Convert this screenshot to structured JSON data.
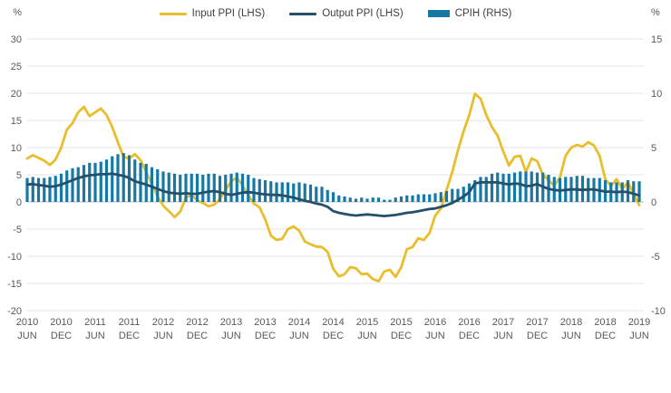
{
  "chart_data": {
    "type": "mixed",
    "title": "",
    "frequency": "monthly",
    "x_start": "2010 JUN",
    "x_end": "2019 JUN",
    "x_tick_labels": [
      {
        "year": "2010",
        "month": "JUN"
      },
      {
        "year": "2010",
        "month": "DEC"
      },
      {
        "year": "2011",
        "month": "JUN"
      },
      {
        "year": "2011",
        "month": "DEC"
      },
      {
        "year": "2012",
        "month": "JUN"
      },
      {
        "year": "2012",
        "month": "DEC"
      },
      {
        "year": "2013",
        "month": "JUN"
      },
      {
        "year": "2013",
        "month": "DEC"
      },
      {
        "year": "2014",
        "month": "JUN"
      },
      {
        "year": "2014",
        "month": "DEC"
      },
      {
        "year": "2015",
        "month": "JUN"
      },
      {
        "year": "2015",
        "month": "DEC"
      },
      {
        "year": "2016",
        "month": "JUN"
      },
      {
        "year": "2016",
        "month": "DEC"
      },
      {
        "year": "2017",
        "month": "JUN"
      },
      {
        "year": "2017",
        "month": "DEC"
      },
      {
        "year": "2018",
        "month": "JUN"
      },
      {
        "year": "2018",
        "month": "DEC"
      },
      {
        "year": "2019",
        "month": "JUN"
      }
    ],
    "left_axis": {
      "unit": "%",
      "ticks": [
        30,
        25,
        20,
        15,
        10,
        5,
        0,
        -5,
        -10,
        -15,
        -20
      ],
      "ylim": [
        -20,
        30
      ]
    },
    "right_axis": {
      "unit": "%",
      "ticks": [
        15,
        10,
        5,
        0,
        -5,
        -10
      ],
      "ylim": [
        -10,
        15
      ]
    },
    "grid": {
      "show": true,
      "color": "#e3e3e3",
      "zero_line_color": "#bfbfbf"
    },
    "legend_position": "top-center",
    "series": [
      {
        "name": "Input PPI (LHS)",
        "type": "line",
        "axis": "left",
        "color": "#e9bd2b",
        "values": [
          8.0,
          8.6,
          8.1,
          7.6,
          6.8,
          7.8,
          10.0,
          13.3,
          14.5,
          16.5,
          17.5,
          15.8,
          16.5,
          17.2,
          16.0,
          13.8,
          11.0,
          8.3,
          8.0,
          8.8,
          7.7,
          5.5,
          3.3,
          1.0,
          -0.7,
          -1.7,
          -2.8,
          -1.8,
          0.8,
          1.3,
          0.3,
          -0.2,
          -0.8,
          -0.5,
          0.5,
          2.2,
          3.8,
          4.5,
          3.0,
          1.2,
          -0.3,
          -1.0,
          -3.2,
          -6.2,
          -7.0,
          -6.8,
          -5.0,
          -4.5,
          -5.3,
          -7.3,
          -7.8,
          -8.2,
          -8.3,
          -9.2,
          -12.3,
          -13.7,
          -13.3,
          -12.0,
          -12.2,
          -13.3,
          -13.2,
          -14.2,
          -14.6,
          -12.8,
          -12.5,
          -13.8,
          -12.0,
          -8.7,
          -8.3,
          -6.7,
          -7.0,
          -5.7,
          -2.5,
          -1.2,
          2.2,
          5.5,
          9.5,
          13.0,
          16.0,
          19.9,
          19.0,
          16.0,
          13.8,
          12.2,
          9.3,
          6.7,
          8.3,
          8.5,
          5.5,
          8.0,
          7.5,
          5.0,
          4.0,
          3.0,
          4.5,
          8.5,
          10.0,
          10.5,
          10.2,
          11.0,
          10.4,
          8.5,
          4.2,
          2.9,
          4.2,
          2.4,
          3.6,
          1.5,
          -0.6
        ]
      },
      {
        "name": "Output PPI (LHS)",
        "type": "line",
        "axis": "left",
        "color": "#24506b",
        "values": [
          3.2,
          3.3,
          3.1,
          3.0,
          2.8,
          2.9,
          3.2,
          3.6,
          4.0,
          4.4,
          4.7,
          4.9,
          5.0,
          5.1,
          5.1,
          5.2,
          5.0,
          4.8,
          4.4,
          3.8,
          3.5,
          3.2,
          2.8,
          2.4,
          2.0,
          1.7,
          1.6,
          1.5,
          1.6,
          1.5,
          1.5,
          1.7,
          1.9,
          2.0,
          1.8,
          1.5,
          1.3,
          1.5,
          1.7,
          1.8,
          1.7,
          1.5,
          1.4,
          1.3,
          1.3,
          1.2,
          1.0,
          0.8,
          0.5,
          0.2,
          0.0,
          -0.3,
          -0.5,
          -0.9,
          -1.7,
          -2.0,
          -2.2,
          -2.4,
          -2.5,
          -2.4,
          -2.3,
          -2.4,
          -2.5,
          -2.6,
          -2.5,
          -2.4,
          -2.2,
          -2.0,
          -1.9,
          -1.7,
          -1.5,
          -1.3,
          -1.2,
          -0.9,
          -0.6,
          -0.2,
          0.4,
          1.0,
          1.8,
          3.4,
          3.6,
          3.6,
          3.6,
          3.6,
          3.4,
          3.2,
          3.4,
          3.3,
          2.9,
          3.0,
          3.3,
          2.8,
          2.4,
          2.2,
          2.1,
          2.2,
          2.3,
          2.3,
          2.2,
          2.3,
          2.3,
          2.1,
          1.9,
          1.9,
          1.8,
          1.9,
          1.8,
          1.5,
          1.2
        ]
      },
      {
        "name": "CPIH (RHS)",
        "type": "bar",
        "axis": "right",
        "color": "#1679a4",
        "values": [
          2.2,
          2.3,
          2.2,
          2.2,
          2.3,
          2.4,
          2.6,
          2.9,
          3.1,
          3.2,
          3.4,
          3.6,
          3.6,
          3.7,
          3.9,
          4.2,
          4.4,
          4.5,
          4.3,
          3.9,
          3.6,
          3.5,
          3.2,
          3.0,
          2.8,
          2.7,
          2.6,
          2.5,
          2.6,
          2.6,
          2.6,
          2.5,
          2.6,
          2.6,
          2.4,
          2.5,
          2.6,
          2.7,
          2.6,
          2.5,
          2.2,
          2.1,
          2.0,
          1.9,
          1.8,
          1.8,
          1.8,
          1.7,
          1.8,
          1.7,
          1.6,
          1.4,
          1.4,
          1.1,
          0.9,
          0.6,
          0.5,
          0.4,
          0.3,
          0.4,
          0.3,
          0.4,
          0.4,
          0.2,
          0.2,
          0.4,
          0.5,
          0.6,
          0.6,
          0.7,
          0.7,
          0.7,
          0.8,
          0.9,
          1.0,
          1.2,
          1.2,
          1.4,
          1.7,
          2.0,
          2.3,
          2.3,
          2.6,
          2.7,
          2.6,
          2.6,
          2.7,
          2.8,
          2.8,
          2.8,
          2.7,
          2.7,
          2.5,
          2.3,
          2.2,
          2.3,
          2.3,
          2.4,
          2.4,
          2.2,
          2.2,
          2.2,
          2.0,
          1.8,
          1.8,
          1.8,
          2.0,
          1.9,
          1.9
        ]
      }
    ]
  }
}
